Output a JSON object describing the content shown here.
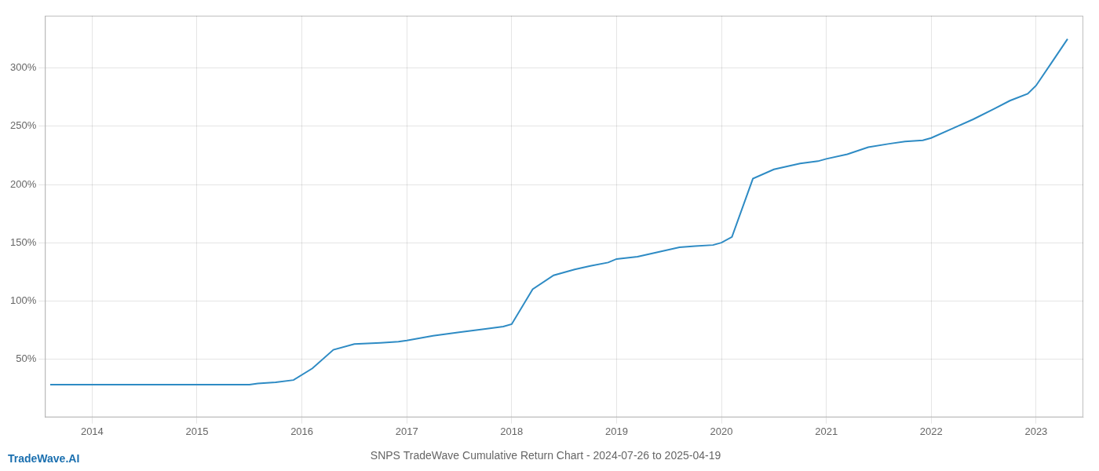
{
  "chart_data": {
    "type": "line",
    "title": "SNPS TradeWave Cumulative Return Chart - 2024-07-26 to 2025-04-19",
    "annotations": [
      {
        "text": "TradeWave.AI",
        "color": "#1a6faf"
      }
    ],
    "x": [
      2013.6,
      2014.0,
      2014.25,
      2014.5,
      2014.75,
      2015.0,
      2015.25,
      2015.5,
      2015.58,
      2015.75,
      2015.92,
      2016.1,
      2016.3,
      2016.5,
      2016.75,
      2016.92,
      2017.0,
      2017.25,
      2017.5,
      2017.75,
      2017.92,
      2018.0,
      2018.2,
      2018.4,
      2018.6,
      2018.75,
      2018.92,
      2019.0,
      2019.2,
      2019.4,
      2019.6,
      2019.75,
      2019.92,
      2020.0,
      2020.1,
      2020.3,
      2020.5,
      2020.75,
      2020.92,
      2021.0,
      2021.2,
      2021.4,
      2021.6,
      2021.75,
      2021.92,
      2022.0,
      2022.2,
      2022.4,
      2022.6,
      2022.75,
      2022.92,
      2023.0,
      2023.15,
      2023.3
    ],
    "values": [
      28,
      28,
      28,
      28,
      28,
      28,
      28,
      28,
      29,
      30,
      32,
      42,
      58,
      63,
      64,
      65,
      66,
      70,
      73,
      76,
      78,
      80,
      110,
      122,
      127,
      130,
      133,
      136,
      138,
      142,
      146,
      147,
      148,
      150,
      155,
      205,
      213,
      218,
      220,
      222,
      226,
      232,
      235,
      237,
      238,
      240,
      248,
      256,
      265,
      272,
      278,
      285,
      305,
      325
    ],
    "color": "#2e8bc4",
    "xlim": [
      2013.55,
      2023.45
    ],
    "xticks": [
      2014,
      2015,
      2016,
      2017,
      2018,
      2019,
      2020,
      2021,
      2022,
      2023
    ],
    "ylim": [
      0,
      345
    ],
    "yticks": [
      {
        "value": 50,
        "label": "50%"
      },
      {
        "value": 100,
        "label": "100%"
      },
      {
        "value": 150,
        "label": "150%"
      },
      {
        "value": 200,
        "label": "200%"
      },
      {
        "value": 250,
        "label": "250%"
      },
      {
        "value": 300,
        "label": "300%"
      }
    ],
    "grid": true
  }
}
